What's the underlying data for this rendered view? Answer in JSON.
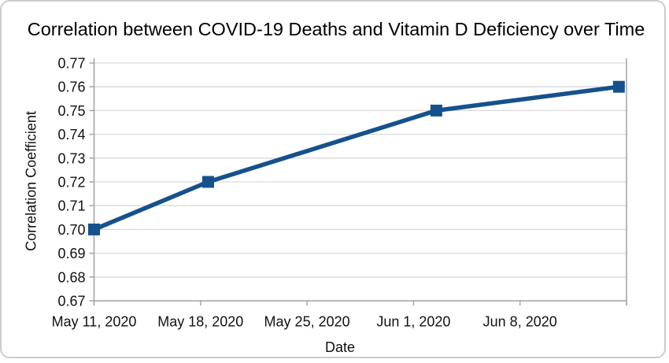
{
  "card": {
    "background": "#ffffff",
    "border_color": "#cccccc"
  },
  "colors": {
    "gridline": "#d9d9d9",
    "axis": "#a6a6a6",
    "text": "#111111"
  },
  "chart_data": {
    "type": "line",
    "title": "Correlation between COVID-19 Deaths and Vitamin D Deficiency over Time",
    "xlabel": "Date",
    "ylabel": "Correlation Coefficient",
    "legend": "none",
    "grid": "horizontal",
    "ylim": [
      0.67,
      0.77
    ],
    "y_ticks": [
      0.67,
      0.68,
      0.69,
      0.7,
      0.71,
      0.72,
      0.73,
      0.74,
      0.75,
      0.76,
      0.77
    ],
    "y_tick_decimals": 2,
    "x_axis_range_days": [
      0,
      35
    ],
    "x_ticks": [
      {
        "day": 0,
        "label": "May 11, 2020"
      },
      {
        "day": 7,
        "label": "May 18, 2020"
      },
      {
        "day": 14,
        "label": "May 25, 2020"
      },
      {
        "day": 21,
        "label": "Jun 1, 2020"
      },
      {
        "day": 28,
        "label": "Jun 8, 2020"
      },
      {
        "day": 35,
        "label": ""
      }
    ],
    "series": [
      {
        "name": "Correlation Coefficient",
        "color": "#15518c",
        "marker": "square",
        "x_days_from_first_tick": [
          0,
          7.5,
          22.5,
          34.5
        ],
        "values": [
          0.7,
          0.72,
          0.75,
          0.76
        ]
      }
    ]
  }
}
